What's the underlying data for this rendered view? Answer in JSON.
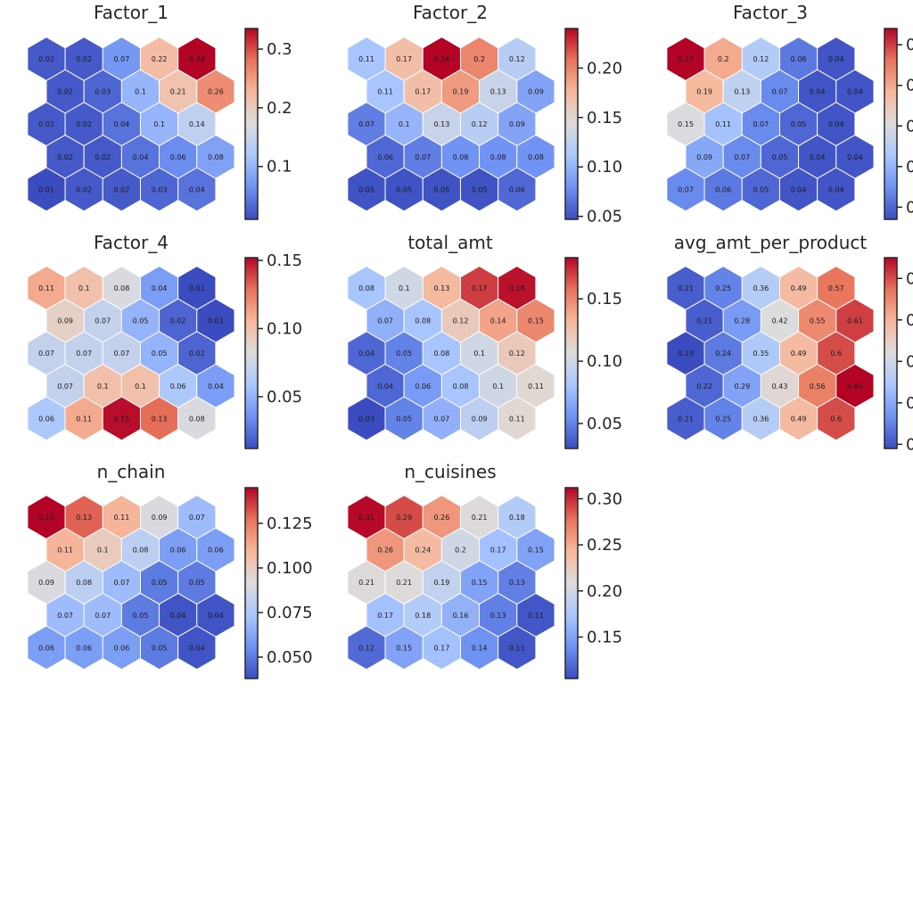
{
  "figure": {
    "colormap": "coolwarm",
    "colormap_stops": [
      "#3b4cc0",
      "#6f92f3",
      "#aac7fd",
      "#dddcdc",
      "#f7b89c",
      "#e7745b",
      "#b40426"
    ],
    "edge_color": "#ffffff",
    "text_color": "#262626"
  },
  "chart_data": [
    {
      "type": "heatmap",
      "title": "Factor_1",
      "grid_shape": "hexagonal",
      "values": [
        [
          0.02,
          0.02,
          0.07,
          0.22,
          0.34
        ],
        [
          0.02,
          0.03,
          0.1,
          0.21,
          0.26
        ],
        [
          0.02,
          0.02,
          0.04,
          0.1,
          0.14
        ],
        [
          0.02,
          0.02,
          0.04,
          0.06,
          0.08
        ],
        [
          0.01,
          0.02,
          0.02,
          0.03,
          0.04
        ]
      ],
      "colorbar": {
        "range": [
          0.01,
          0.335
        ],
        "ticks": [
          0.1,
          0.2,
          0.3
        ],
        "tick_labels": [
          "0.1",
          "0.2",
          "0.3"
        ]
      }
    },
    {
      "type": "heatmap",
      "title": "Factor_2",
      "grid_shape": "hexagonal",
      "values": [
        [
          0.11,
          0.17,
          0.24,
          0.2,
          0.12
        ],
        [
          0.11,
          0.17,
          0.19,
          0.13,
          0.09
        ],
        [
          0.07,
          0.1,
          0.13,
          0.12,
          0.09
        ],
        [
          0.06,
          0.07,
          0.08,
          0.08,
          0.08
        ],
        [
          0.05,
          0.05,
          0.05,
          0.05,
          0.06
        ]
      ],
      "colorbar": {
        "range": [
          0.047,
          0.24
        ],
        "ticks": [
          0.05,
          0.1,
          0.15,
          0.2
        ],
        "tick_labels": [
          "0.05",
          "0.10",
          "0.15",
          "0.20"
        ]
      }
    },
    {
      "type": "heatmap",
      "title": "Factor_3",
      "grid_shape": "hexagonal",
      "values": [
        [
          0.27,
          0.2,
          0.12,
          0.06,
          0.04
        ],
        [
          0.19,
          0.13,
          0.07,
          0.04,
          0.04
        ],
        [
          0.15,
          0.11,
          0.07,
          0.05,
          0.04
        ],
        [
          0.09,
          0.07,
          0.05,
          0.04,
          0.04
        ],
        [
          0.07,
          0.06,
          0.05,
          0.04,
          0.04
        ]
      ],
      "colorbar": {
        "range": [
          0.035,
          0.27
        ],
        "ticks": [
          0.05,
          0.1,
          0.15,
          0.2,
          0.25
        ],
        "tick_labels": [
          "0",
          "0",
          "0",
          "0",
          "0"
        ]
      }
    },
    {
      "type": "heatmap",
      "title": "Factor_4",
      "grid_shape": "hexagonal",
      "values": [
        [
          0.11,
          0.1,
          0.08,
          0.04,
          0.01
        ],
        [
          0.09,
          0.07,
          0.05,
          0.02,
          0.01
        ],
        [
          0.07,
          0.07,
          0.07,
          0.05,
          0.02
        ],
        [
          0.07,
          0.1,
          0.1,
          0.06,
          0.04
        ],
        [
          0.06,
          0.11,
          0.15,
          0.13,
          0.08
        ]
      ],
      "colorbar": {
        "range": [
          0.012,
          0.152
        ],
        "ticks": [
          0.05,
          0.1,
          0.15
        ],
        "tick_labels": [
          "0.05",
          "0.10",
          "0.15"
        ]
      }
    },
    {
      "type": "heatmap",
      "title": "total_amt",
      "grid_shape": "hexagonal",
      "values": [
        [
          0.08,
          0.1,
          0.13,
          0.17,
          0.18
        ],
        [
          0.07,
          0.08,
          0.12,
          0.14,
          0.15
        ],
        [
          0.04,
          0.05,
          0.08,
          0.1,
          0.12
        ],
        [
          0.04,
          0.06,
          0.08,
          0.1,
          0.11
        ],
        [
          0.03,
          0.05,
          0.07,
          0.09,
          0.11
        ]
      ],
      "colorbar": {
        "range": [
          0.03,
          0.183
        ],
        "ticks": [
          0.05,
          0.1,
          0.15
        ],
        "tick_labels": [
          "0.05",
          "0.10",
          "0.15"
        ]
      }
    },
    {
      "type": "heatmap",
      "title": "avg_amt_per_product",
      "grid_shape": "hexagonal",
      "values": [
        [
          0.21,
          0.25,
          0.36,
          0.49,
          0.57
        ],
        [
          0.21,
          0.28,
          0.42,
          0.55,
          0.61
        ],
        [
          0.19,
          0.24,
          0.35,
          0.49,
          0.6
        ],
        [
          0.22,
          0.29,
          0.43,
          0.56,
          0.65
        ],
        [
          0.21,
          0.25,
          0.36,
          0.49,
          0.6
        ]
      ],
      "colorbar": {
        "range": [
          0.19,
          0.65
        ],
        "ticks": [
          0.2,
          0.3,
          0.4,
          0.5,
          0.6
        ],
        "tick_labels": [
          "0",
          "0",
          "0",
          "0",
          "0"
        ]
      }
    },
    {
      "type": "heatmap",
      "title": "n_chain",
      "grid_shape": "hexagonal",
      "values": [
        [
          0.15,
          0.13,
          0.11,
          0.09,
          0.07
        ],
        [
          0.11,
          0.1,
          0.08,
          0.06,
          0.06
        ],
        [
          0.09,
          0.08,
          0.07,
          0.05,
          0.05
        ],
        [
          0.07,
          0.07,
          0.05,
          0.04,
          0.04
        ],
        [
          0.06,
          0.06,
          0.06,
          0.05,
          0.04
        ]
      ],
      "colorbar": {
        "range": [
          0.038,
          0.145
        ],
        "ticks": [
          0.05,
          0.075,
          0.1,
          0.125
        ],
        "tick_labels": [
          "0.050",
          "0.075",
          "0.100",
          "0.125"
        ]
      }
    },
    {
      "type": "heatmap",
      "title": "n_cuisines",
      "grid_shape": "hexagonal",
      "values": [
        [
          0.31,
          0.29,
          0.26,
          0.21,
          0.18
        ],
        [
          0.26,
          0.24,
          0.2,
          0.17,
          0.15
        ],
        [
          0.21,
          0.21,
          0.19,
          0.15,
          0.13
        ],
        [
          0.17,
          0.18,
          0.16,
          0.13,
          0.11
        ],
        [
          0.12,
          0.15,
          0.17,
          0.14,
          0.11
        ]
      ],
      "colorbar": {
        "range": [
          0.105,
          0.312
        ],
        "ticks": [
          0.15,
          0.2,
          0.25,
          0.3
        ],
        "tick_labels": [
          "0.15",
          "0.20",
          "0.25",
          "0.30"
        ]
      }
    }
  ]
}
